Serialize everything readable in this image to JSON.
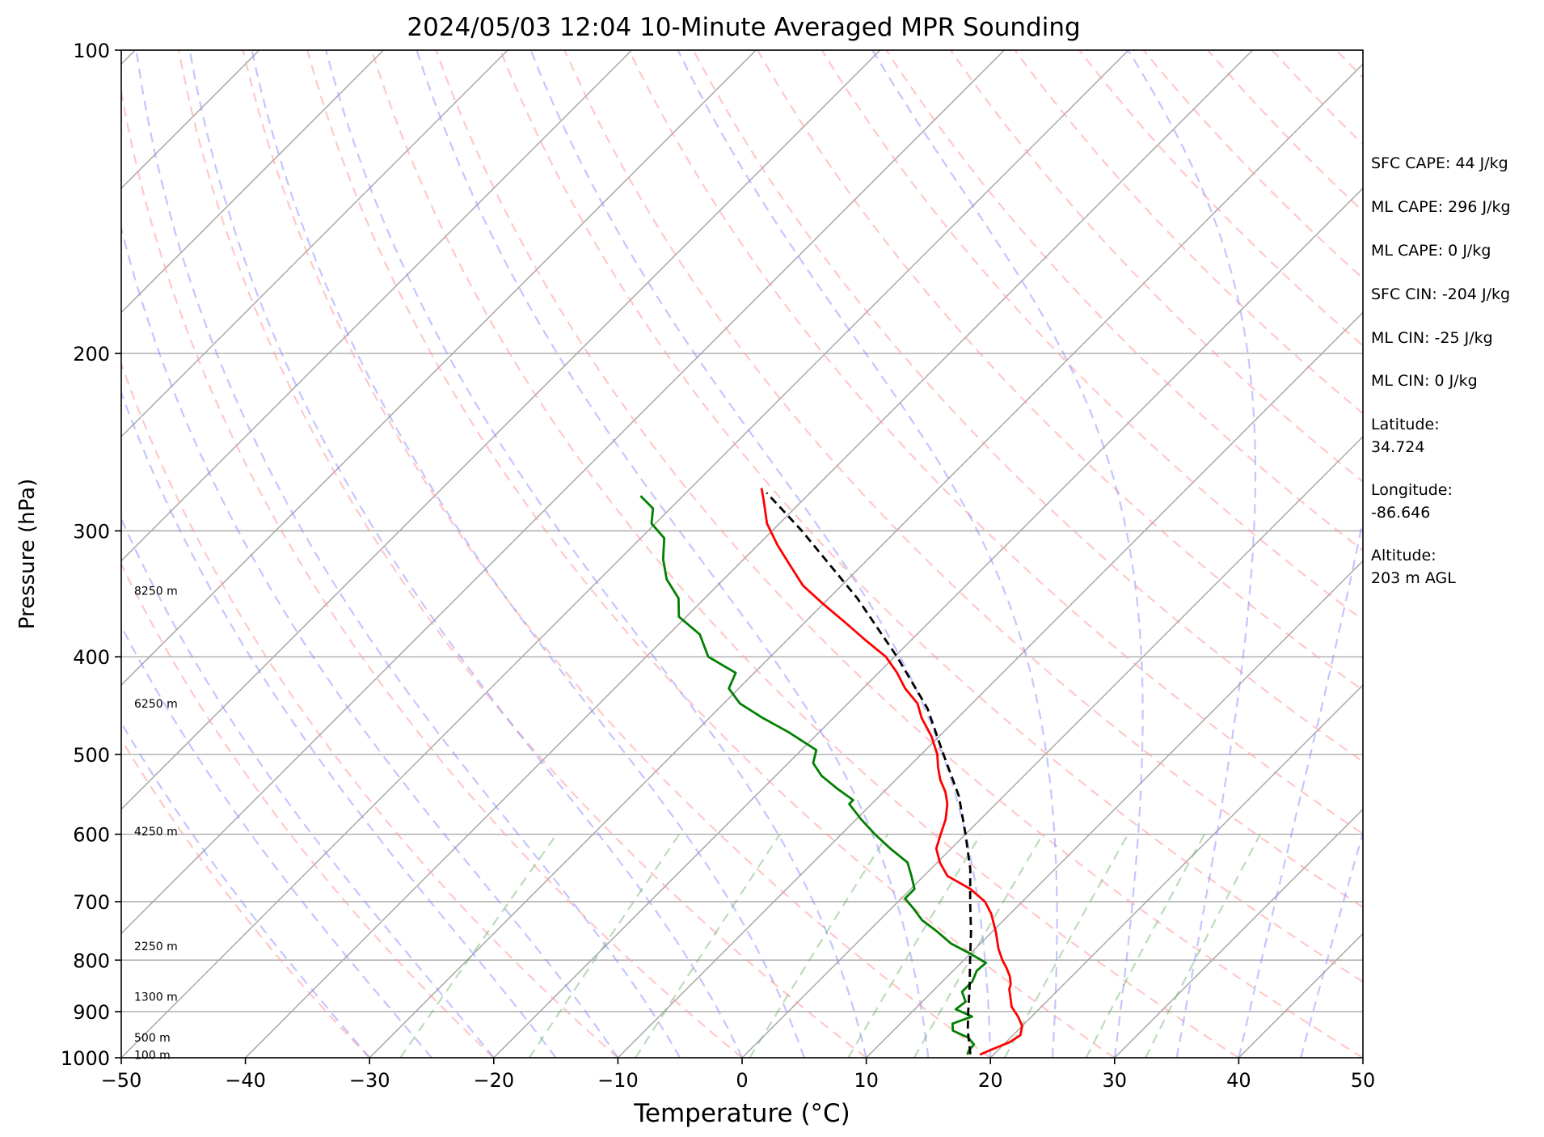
{
  "chart_data": {
    "type": "line",
    "title": "2024/05/03 12:04 10-Minute Averaged MPR Sounding",
    "xlabel": "Temperature (°C)",
    "ylabel": "Pressure (hPa)",
    "xlim": [
      -50,
      50
    ],
    "ylim": [
      1000,
      100
    ],
    "y_scale": "log",
    "x_ticks": [
      -50,
      -40,
      -30,
      -20,
      -10,
      0,
      10,
      20,
      30,
      40,
      50
    ],
    "x_tick_labels": [
      "−50",
      "−40",
      "−30",
      "−20",
      "−10",
      "0",
      "10",
      "20",
      "30",
      "40",
      "50"
    ],
    "y_ticks": [
      100,
      200,
      300,
      400,
      500,
      600,
      700,
      800,
      900,
      1000
    ],
    "y_tick_labels": [
      "100",
      "200",
      "300",
      "400",
      "500",
      "600",
      "700",
      "800",
      "900",
      "1000"
    ],
    "skew": true,
    "grid": true,
    "height_labels": [
      {
        "p": 344,
        "text": "8250 m"
      },
      {
        "p": 445,
        "text": "6250 m"
      },
      {
        "p": 596,
        "text": "4250 m"
      },
      {
        "p": 775,
        "text": "2250 m"
      },
      {
        "p": 870,
        "text": "1300 m"
      },
      {
        "p": 955,
        "text": "500 m"
      },
      {
        "p": 994,
        "text": "100 m"
      }
    ],
    "series": [
      {
        "color": "#ff0000",
        "style": "solid",
        "p": [
          993,
          980,
          965,
          950,
          930,
          910,
          890,
          870,
          855,
          845,
          830,
          815,
          800,
          780,
          750,
          720,
          700,
          680,
          660,
          640,
          620,
          600,
          580,
          560,
          545,
          530,
          515,
          500,
          480,
          460,
          445,
          430,
          415,
          400,
          385,
          370,
          355,
          340,
          325,
          310,
          295,
          280,
          272
        ],
        "t": [
          18.9,
          19.5,
          20.3,
          20.6,
          20.0,
          18.9,
          17.6,
          16.7,
          16.0,
          15.7,
          15.0,
          14.1,
          13.1,
          11.9,
          10.3,
          8.5,
          7.0,
          4.8,
          1.9,
          0.2,
          -1.2,
          -2.0,
          -2.8,
          -3.9,
          -5.0,
          -6.4,
          -7.6,
          -8.7,
          -10.6,
          -12.9,
          -14.4,
          -16.6,
          -18.5,
          -20.7,
          -23.7,
          -26.7,
          -29.9,
          -33.1,
          -35.7,
          -38.4,
          -41.0,
          -43.1,
          -44.3
        ]
      },
      {
        "color": "#008000",
        "style": "solid",
        "p": [
          993,
          985,
          970,
          955,
          940,
          925,
          910,
          895,
          880,
          860,
          840,
          820,
          805,
          790,
          770,
          750,
          730,
          710,
          695,
          680,
          660,
          640,
          620,
          600,
          580,
          560,
          555,
          540,
          525,
          510,
          495,
          475,
          460,
          445,
          430,
          415,
          400,
          380,
          365,
          350,
          335,
          320,
          305,
          295,
          285,
          277
        ],
        "t": [
          17.9,
          17.7,
          17.6,
          16.6,
          14.8,
          14.2,
          15.2,
          13.3,
          13.5,
          12.4,
          12.4,
          11.9,
          12.0,
          10.2,
          7.6,
          5.6,
          3.4,
          1.7,
          0.3,
          0.3,
          -1.0,
          -2.4,
          -4.9,
          -7.3,
          -9.6,
          -11.8,
          -11.8,
          -14.1,
          -16.3,
          -18.0,
          -18.8,
          -22.5,
          -25.7,
          -28.7,
          -30.8,
          -31.5,
          -35.0,
          -37.5,
          -40.6,
          -42.1,
          -44.6,
          -46.5,
          -48.1,
          -50.3,
          -51.4,
          -53.4
        ]
      },
      {
        "color": "#000000",
        "style": "dashed",
        "p": [
          992,
          940,
          900,
          850,
          800,
          750,
          700,
          650,
          600,
          550,
          500,
          450,
          400,
          350,
          300,
          275
        ],
        "t": [
          18.1,
          16.0,
          14.5,
          12.6,
          10.5,
          8.3,
          5.8,
          3.2,
          0.0,
          -3.6,
          -8.2,
          -13.2,
          -19.8,
          -27.7,
          -37.6,
          -43.5
        ]
      }
    ]
  },
  "info_panel": {
    "sfc_cape": "SFC CAPE: 44 J/kg",
    "ml_cape_1": "ML CAPE: 296 J/kg",
    "ml_cape_2": "ML CAPE: 0 J/kg",
    "sfc_cin": "SFC CIN: -204 J/kg",
    "ml_cin_1": "ML CIN: -25 J/kg",
    "ml_cin_2": "ML CIN: 0 J/kg",
    "latitude": "Latitude:\n34.724",
    "longitude": "Longitude:\n-86.646",
    "altitude": "Altitude:\n203 m AGL"
  }
}
